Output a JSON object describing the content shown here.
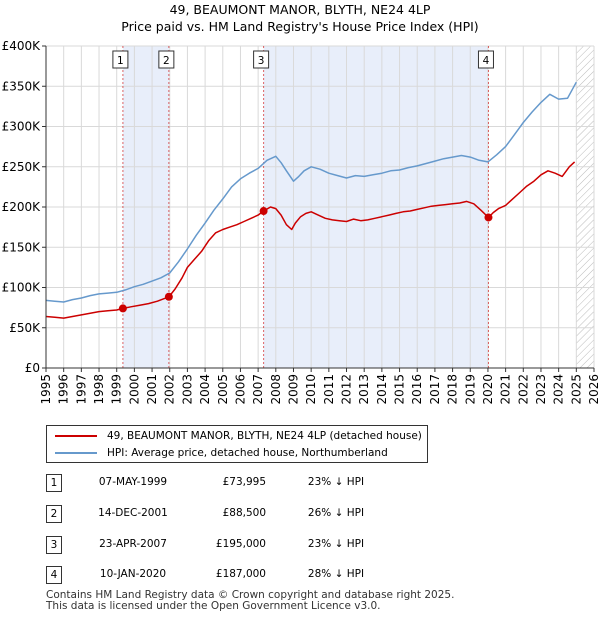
{
  "title": {
    "line1": "49, BEAUMONT MANOR, BLYTH, NE24 4LP",
    "line2": "Price paid vs. HM Land Registry's House Price Index (HPI)"
  },
  "chart_data": {
    "type": "line",
    "title": "49, BEAUMONT MANOR, BLYTH, NE24 4LP — Price paid vs. HM Land Registry's House Price Index (HPI)",
    "xlim": [
      1995,
      2026
    ],
    "ylim": [
      0,
      400000
    ],
    "x_ticks": [
      "1995",
      "1996",
      "1997",
      "1998",
      "1999",
      "2000",
      "2001",
      "2002",
      "2003",
      "2004",
      "2005",
      "2006",
      "2007",
      "2008",
      "2009",
      "2010",
      "2011",
      "2012",
      "2013",
      "2014",
      "2015",
      "2016",
      "2017",
      "2018",
      "2019",
      "2020",
      "2021",
      "2022",
      "2023",
      "2024",
      "2025",
      "2026"
    ],
    "y_ticks": [
      {
        "value": 0,
        "label": "£0"
      },
      {
        "value": 50000,
        "label": "£50K"
      },
      {
        "value": 100000,
        "label": "£100K"
      },
      {
        "value": 150000,
        "label": "£150K"
      },
      {
        "value": 200000,
        "label": "£200K"
      },
      {
        "value": 250000,
        "label": "£250K"
      },
      {
        "value": 300000,
        "label": "£300K"
      },
      {
        "value": 350000,
        "label": "£350K"
      },
      {
        "value": 400000,
        "label": "£400K"
      }
    ],
    "grid": true,
    "shaded_ranges": [
      [
        1999.35,
        2001.95
      ],
      [
        2007.31,
        2020.03
      ]
    ],
    "future_hatch_start": 2025.0,
    "series": [
      {
        "name": "49, BEAUMONT MANOR, BLYTH, NE24 4LP (detached house)",
        "color": "#cc0000",
        "x": [
          1995.0,
          1995.5,
          1996.0,
          1996.5,
          1997.0,
          1997.5,
          1998.0,
          1998.5,
          1999.0,
          1999.35,
          1999.8,
          2000.3,
          2000.8,
          2001.3,
          2001.95,
          2002.3,
          2002.7,
          2003.0,
          2003.4,
          2003.8,
          2004.2,
          2004.6,
          2005.0,
          2005.4,
          2005.8,
          2006.2,
          2006.6,
          2007.0,
          2007.31,
          2007.7,
          2008.0,
          2008.3,
          2008.6,
          2008.9,
          2009.1,
          2009.4,
          2009.7,
          2010.0,
          2010.4,
          2010.8,
          2011.2,
          2011.6,
          2012.0,
          2012.4,
          2012.8,
          2013.2,
          2013.6,
          2014.0,
          2014.4,
          2014.8,
          2015.2,
          2015.6,
          2016.0,
          2016.4,
          2016.8,
          2017.2,
          2017.6,
          2018.0,
          2018.4,
          2018.8,
          2019.2,
          2019.6,
          2020.03,
          2020.3,
          2020.6,
          2021.0,
          2021.4,
          2021.8,
          2022.2,
          2022.6,
          2023.0,
          2023.4,
          2023.8,
          2024.2,
          2024.6,
          2024.9
        ],
        "values": [
          64000,
          63000,
          62000,
          64000,
          66000,
          68000,
          70000,
          71000,
          72000,
          73995,
          76000,
          78000,
          80000,
          83000,
          88500,
          98000,
          112000,
          125000,
          135000,
          145000,
          158000,
          168000,
          172000,
          175000,
          178000,
          182000,
          186000,
          190000,
          195000,
          200000,
          198000,
          190000,
          178000,
          172000,
          180000,
          188000,
          192000,
          194000,
          190000,
          186000,
          184000,
          183000,
          182000,
          185000,
          183000,
          184000,
          186000,
          188000,
          190000,
          192000,
          194000,
          195000,
          197000,
          199000,
          201000,
          202000,
          203000,
          204000,
          205000,
          207000,
          204000,
          196000,
          187000,
          193000,
          198000,
          202000,
          210000,
          218000,
          226000,
          232000,
          240000,
          245000,
          242000,
          238000,
          250000,
          256000
        ]
      },
      {
        "name": "HPI: Average price, detached house, Northumberland",
        "color": "#6699cc",
        "x": [
          1995.0,
          1995.5,
          1996.0,
          1996.5,
          1997.0,
          1997.5,
          1998.0,
          1998.5,
          1999.0,
          1999.5,
          2000.0,
          2000.5,
          2001.0,
          2001.5,
          2002.0,
          2002.5,
          2003.0,
          2003.5,
          2004.0,
          2004.5,
          2005.0,
          2005.5,
          2006.0,
          2006.5,
          2007.0,
          2007.5,
          2008.0,
          2008.3,
          2008.6,
          2009.0,
          2009.3,
          2009.6,
          2010.0,
          2010.5,
          2011.0,
          2011.5,
          2012.0,
          2012.5,
          2013.0,
          2013.5,
          2014.0,
          2014.5,
          2015.0,
          2015.5,
          2016.0,
          2016.5,
          2017.0,
          2017.5,
          2018.0,
          2018.5,
          2019.0,
          2019.5,
          2020.0,
          2020.5,
          2021.0,
          2021.5,
          2022.0,
          2022.5,
          2023.0,
          2023.5,
          2024.0,
          2024.5,
          2025.0
        ],
        "values": [
          84000,
          83000,
          82000,
          85000,
          87000,
          90000,
          92000,
          93000,
          94000,
          97000,
          101000,
          104000,
          108000,
          112000,
          118000,
          132000,
          148000,
          165000,
          180000,
          196000,
          210000,
          225000,
          235000,
          242000,
          248000,
          258000,
          263000,
          255000,
          245000,
          232000,
          238000,
          245000,
          250000,
          247000,
          242000,
          239000,
          236000,
          239000,
          238000,
          240000,
          242000,
          245000,
          246000,
          249000,
          251000,
          254000,
          257000,
          260000,
          262000,
          264000,
          262000,
          258000,
          256000,
          265000,
          275000,
          290000,
          305000,
          318000,
          330000,
          340000,
          334000,
          335000,
          355000
        ]
      }
    ],
    "sales": [
      {
        "num": "1",
        "year": 1999.35,
        "price": 73995
      },
      {
        "num": "2",
        "year": 2001.95,
        "price": 88500
      },
      {
        "num": "3",
        "year": 2007.31,
        "price": 195000
      },
      {
        "num": "4",
        "year": 2020.03,
        "price": 187000
      }
    ]
  },
  "legend": {
    "property_label": "49, BEAUMONT MANOR, BLYTH, NE24 4LP (detached house)",
    "hpi_label": "HPI: Average price, detached house, Northumberland"
  },
  "transactions": [
    {
      "num": "1",
      "date": "07-MAY-1999",
      "price": "£73,995",
      "hpi": "23% ↓ HPI"
    },
    {
      "num": "2",
      "date": "14-DEC-2001",
      "price": "£88,500",
      "hpi": "26% ↓ HPI"
    },
    {
      "num": "3",
      "date": "23-APR-2007",
      "price": "£195,000",
      "hpi": "23% ↓ HPI"
    },
    {
      "num": "4",
      "date": "10-JAN-2020",
      "price": "£187,000",
      "hpi": "28% ↓ HPI"
    }
  ],
  "footer": {
    "line1": "Contains HM Land Registry data © Crown copyright and database right 2025.",
    "line2": "This data is licensed under the Open Government Licence v3.0."
  },
  "colors": {
    "property": "#cc0000",
    "hpi": "#6699cc",
    "shade": "#e8eefa",
    "grid": "#d9d9d9"
  }
}
